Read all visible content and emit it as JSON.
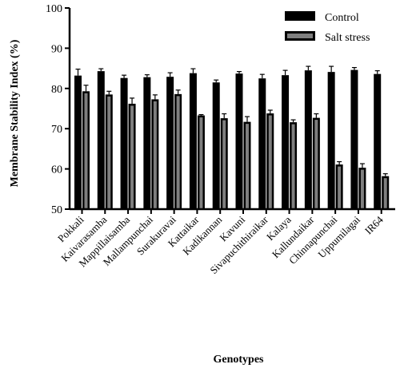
{
  "chart_data": {
    "type": "bar",
    "title": "",
    "xlabel": "Genotypes",
    "ylabel": "Membrane Stability Index (%)",
    "ylim": [
      50,
      100
    ],
    "yticks": [
      50,
      60,
      70,
      80,
      90,
      100
    ],
    "grid": false,
    "legend": "top-right",
    "categories": [
      "Pokkali",
      "Kaivarasamba",
      "Mappillaisamba",
      "Mallampunchai",
      "Surakuravai",
      "Kattaikar",
      "Kadikannan",
      "Kavuni",
      "Sivapuchithiraikar",
      "Kalaya",
      "Kallundaikar",
      "Chinnapunchai",
      "Uppumilagai",
      "IR64"
    ],
    "series": [
      {
        "name": "Control",
        "color": "#000000",
        "values": [
          83.2,
          84.3,
          82.6,
          82.8,
          82.9,
          83.8,
          81.5,
          83.7,
          82.5,
          83.3,
          84.5,
          84.1,
          84.6,
          83.6
        ],
        "errors": [
          1.6,
          0.6,
          0.7,
          0.6,
          1.0,
          1.1,
          0.6,
          0.5,
          1.0,
          1.2,
          1.0,
          1.4,
          0.6,
          0.8
        ]
      },
      {
        "name": "Salt stress",
        "color": "#7f7f7f",
        "values": [
          79.3,
          78.5,
          76.2,
          77.3,
          78.6,
          73.3,
          72.6,
          71.7,
          73.8,
          71.6,
          72.7,
          61.1,
          60.3,
          58.2
        ],
        "errors": [
          1.5,
          0.8,
          1.4,
          1.1,
          1.0,
          0.2,
          1.1,
          1.3,
          0.8,
          0.6,
          1.0,
          0.7,
          1.0,
          0.6
        ]
      }
    ]
  }
}
